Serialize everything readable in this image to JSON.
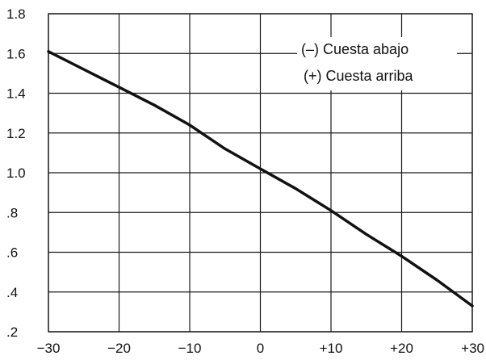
{
  "chart_data": {
    "type": "line",
    "title": "",
    "xlabel": "",
    "ylabel": "",
    "xlim": [
      -30,
      30
    ],
    "ylim": [
      0.2,
      1.8
    ],
    "grid": true,
    "x_ticks": [
      -30,
      -20,
      -10,
      0,
      10,
      20,
      30
    ],
    "x_tick_labels": [
      "−30",
      "−20",
      "−10",
      "0",
      "+10",
      "+20",
      "+30"
    ],
    "y_ticks": [
      0.2,
      0.4,
      0.6,
      0.8,
      1.0,
      1.2,
      1.4,
      1.6,
      1.8
    ],
    "y_tick_labels": [
      ".2",
      ".4",
      ".6",
      ".8",
      "1.0",
      "1.2",
      "1.4",
      "1.6",
      "1.8"
    ],
    "annotations": [
      "(–) Cuesta abajo",
      "(+) Cuesta arriba"
    ],
    "legend_placement": "top-right",
    "series": [
      {
        "x": [
          -30,
          -25,
          -20,
          -15,
          -10,
          -5,
          0,
          5,
          10,
          15,
          20,
          25,
          30
        ],
        "y": [
          1.61,
          1.52,
          1.43,
          1.34,
          1.24,
          1.12,
          1.02,
          0.92,
          0.81,
          0.69,
          0.58,
          0.46,
          0.33
        ]
      }
    ],
    "colors": {
      "line": "#111111",
      "grid": "#1a1a1a",
      "background": "#ffffff"
    }
  }
}
